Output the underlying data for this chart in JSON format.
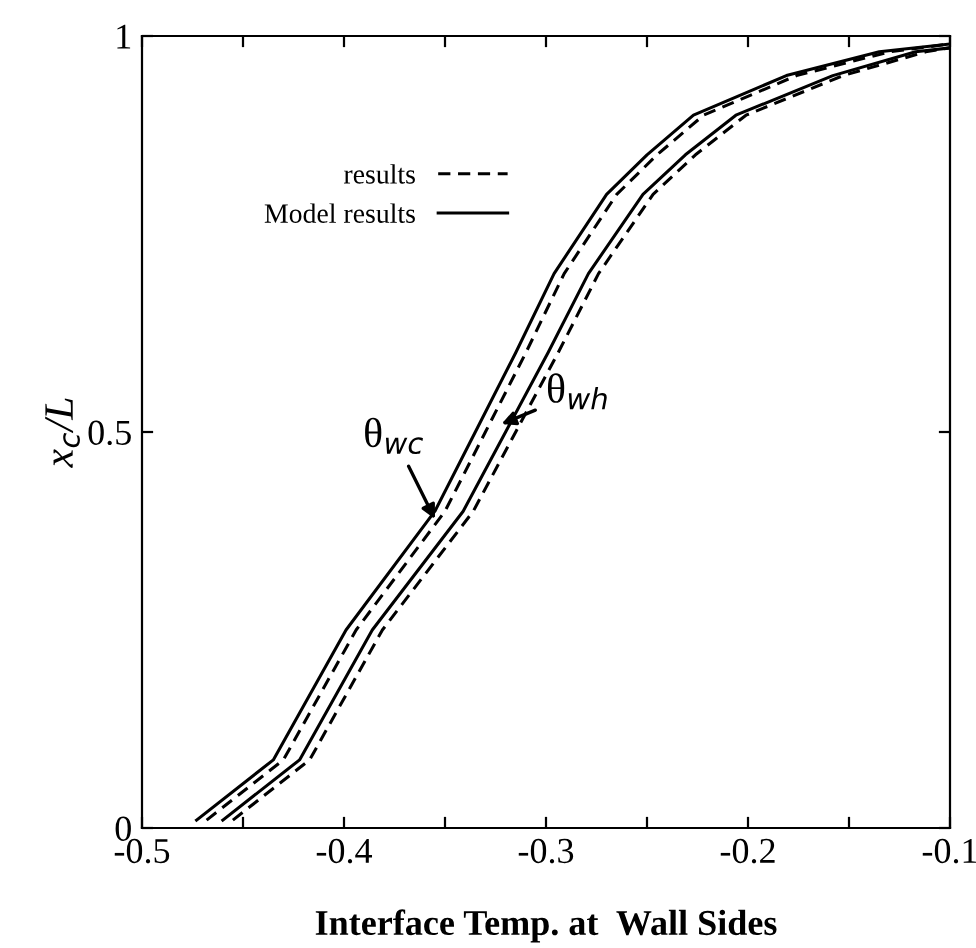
{
  "chart_data": {
    "type": "line",
    "xlabel": "Interface Temp. at  Wall Sides",
    "ylabel": "x$_{c}$/L",
    "xlim": [
      -0.5,
      -0.1
    ],
    "ylim": [
      0,
      1
    ],
    "xticks": [
      -0.5,
      {
        "value": -0.45,
        "label": null
      },
      -0.4,
      {
        "value": -0.35,
        "label": null
      },
      -0.3,
      {
        "value": -0.25,
        "label": null
      },
      -0.2,
      {
        "value": -0.15,
        "label": null
      },
      -0.1
    ],
    "yticks": [
      0,
      0.5,
      1
    ],
    "grid": false,
    "legend": "top left",
    "marker": "none",
    "series": [
      {
        "name": "results",
        "color": "#000000",
        "line_style": "dashed",
        "x": [
          -0.468,
          -0.43,
          -0.394,
          -0.35,
          -0.33,
          -0.31,
          -0.291,
          -0.265,
          -0.245,
          -0.222,
          -0.176,
          -0.13,
          -0.1
        ],
        "values": [
          0.01,
          0.086,
          0.25,
          0.4,
          0.5,
          0.6,
          0.7,
          0.8,
          0.85,
          0.9,
          0.95,
          0.98,
          0.99
        ]
      },
      {
        "name": "Model results",
        "color": "#000000",
        "line_style": "solid",
        "x": [
          -0.473,
          -0.435,
          -0.399,
          -0.355,
          -0.335,
          -0.315,
          -0.296,
          -0.27,
          -0.25,
          -0.227,
          -0.181,
          -0.135,
          -0.1
        ],
        "values": [
          0.01,
          0.086,
          0.25,
          0.4,
          0.5,
          0.6,
          0.7,
          0.8,
          0.85,
          0.9,
          0.95,
          0.98,
          0.99
        ]
      },
      {
        "color": "#000000",
        "line_style": "solid",
        "x": [
          -0.46,
          -0.422,
          -0.386,
          -0.341,
          -0.32,
          -0.299,
          -0.279,
          -0.252,
          -0.231,
          -0.206,
          -0.158,
          -0.117,
          -0.1
        ],
        "values": [
          0.01,
          0.086,
          0.25,
          0.4,
          0.5,
          0.6,
          0.7,
          0.8,
          0.85,
          0.9,
          0.95,
          0.98,
          0.985
        ]
      },
      {
        "color": "#000000",
        "line_style": "dashed",
        "x": [
          -0.455,
          -0.417,
          -0.381,
          -0.336,
          -0.315,
          -0.294,
          -0.274,
          -0.247,
          -0.226,
          -0.201,
          -0.153,
          -0.112,
          -0.1
        ],
        "values": [
          0.01,
          0.086,
          0.25,
          0.4,
          0.5,
          0.6,
          0.7,
          0.8,
          0.85,
          0.9,
          0.95,
          0.98,
          0.985
        ]
      }
    ],
    "annotations": [
      {
        "text": "θ$_{wc}$",
        "x": -0.355,
        "y": 0.39
      },
      {
        "text": "θ$_{wh}$",
        "x": -0.322,
        "y": 0.51
      }
    ]
  }
}
